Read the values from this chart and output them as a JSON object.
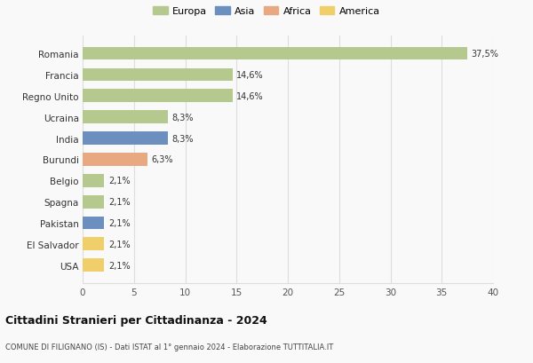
{
  "countries": [
    "Romania",
    "Francia",
    "Regno Unito",
    "Ucraina",
    "India",
    "Burundi",
    "Belgio",
    "Spagna",
    "Pakistan",
    "El Salvador",
    "USA"
  ],
  "values": [
    37.5,
    14.6,
    14.6,
    8.3,
    8.3,
    6.3,
    2.1,
    2.1,
    2.1,
    2.1,
    2.1
  ],
  "labels": [
    "37,5%",
    "14,6%",
    "14,6%",
    "8,3%",
    "8,3%",
    "6,3%",
    "2,1%",
    "2,1%",
    "2,1%",
    "2,1%",
    "2,1%"
  ],
  "colors": [
    "#b5c98e",
    "#b5c98e",
    "#b5c98e",
    "#b5c98e",
    "#6b8fbf",
    "#e8a882",
    "#b5c98e",
    "#b5c98e",
    "#6b8fbf",
    "#f0cf6a",
    "#f0cf6a"
  ],
  "legend_labels": [
    "Europa",
    "Asia",
    "Africa",
    "America"
  ],
  "legend_colors": [
    "#b5c98e",
    "#6b8fbf",
    "#e8a882",
    "#f0cf6a"
  ],
  "title": "Cittadini Stranieri per Cittadinanza - 2024",
  "subtitle": "COMUNE DI FILIGNANO (IS) - Dati ISTAT al 1° gennaio 2024 - Elaborazione TUTTITALIA.IT",
  "xlim": [
    0,
    40
  ],
  "xticks": [
    0,
    5,
    10,
    15,
    20,
    25,
    30,
    35,
    40
  ],
  "bg_color": "#f9f9f9",
  "grid_color": "#dddddd"
}
